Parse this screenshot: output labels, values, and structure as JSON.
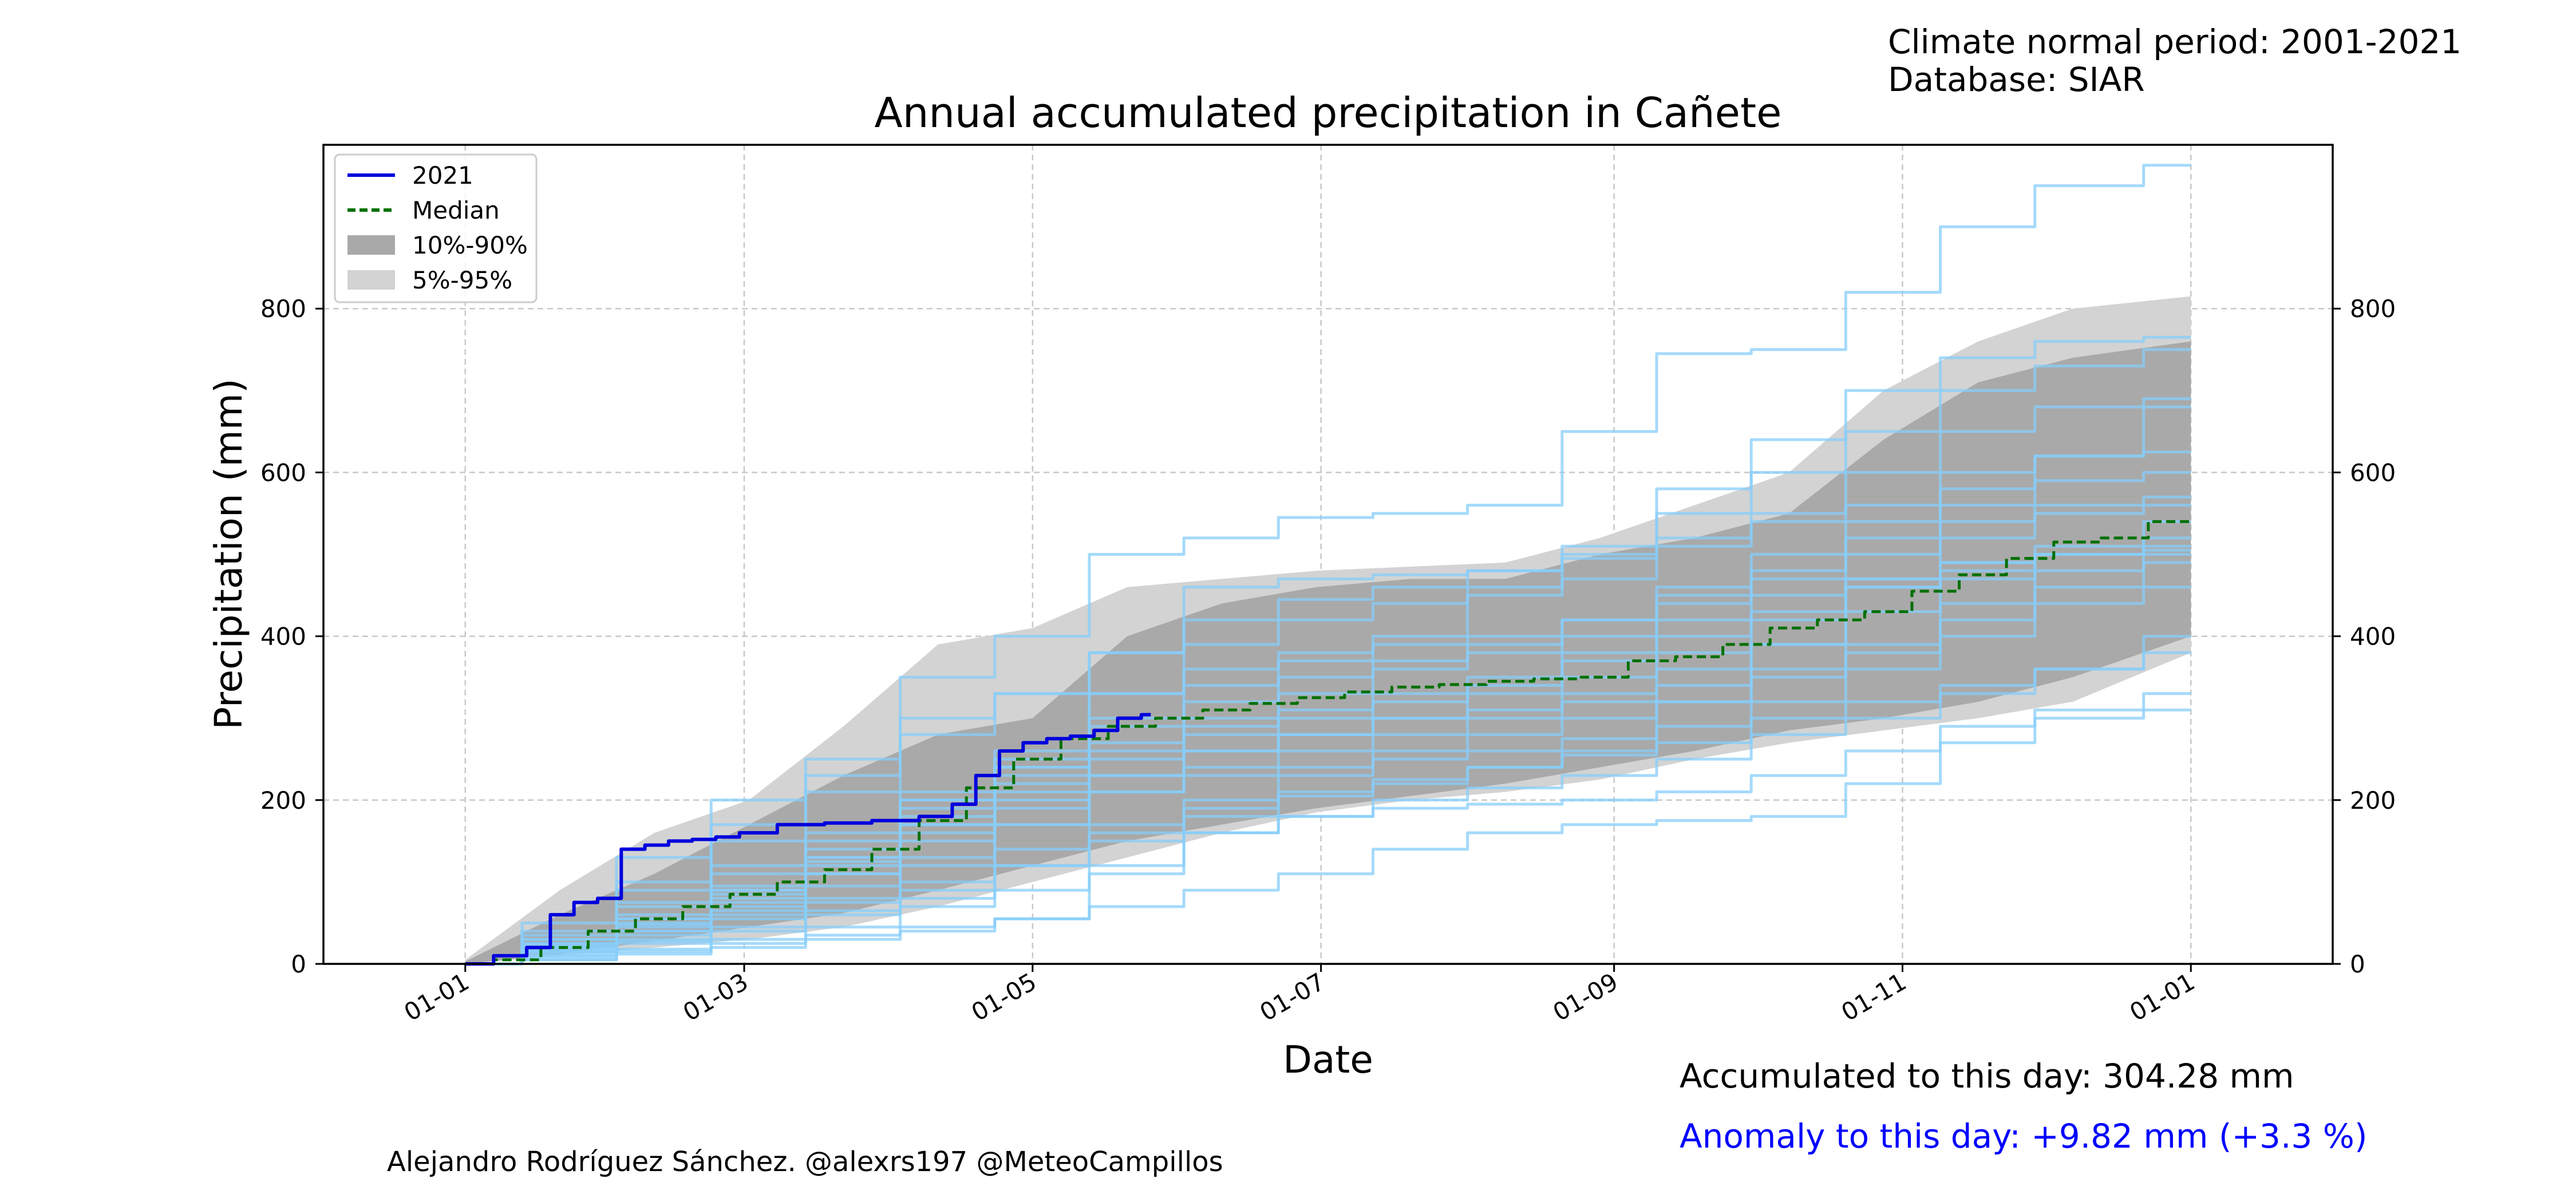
{
  "meta": {
    "period": "Climate normal period: 2001-2021",
    "database": "Database: SIAR"
  },
  "stats": {
    "accumulated": "Accumulated to this day: 304.28 mm",
    "anomaly": "Anomaly to this day: +9.82 mm (+3.3 %)",
    "anomaly_color": "#0000ff"
  },
  "credit": "Alejandro Rodríguez Sánchez. @alexrs197 @MeteoCampillos",
  "colors": {
    "current_year": "#0000dd",
    "median": "#007000",
    "band_10_90": "#a9a9a9",
    "band_5_95": "#d3d3d3",
    "past_years": "#87cefa",
    "grid": "#c8c8c8"
  },
  "chart_data": {
    "type": "line",
    "title": "Annual accumulated precipitation in Cañete",
    "xlabel": "Date",
    "ylabel": "Precipitation (mm)",
    "x_unit": "day of year",
    "xlim": [
      -30,
      395
    ],
    "ylim": [
      0,
      1000
    ],
    "grid": true,
    "legend_position": "top-left",
    "x_ticks": [
      {
        "x": 0,
        "label": "01-01"
      },
      {
        "x": 59,
        "label": "01-03"
      },
      {
        "x": 120,
        "label": "01-05"
      },
      {
        "x": 181,
        "label": "01-07"
      },
      {
        "x": 243,
        "label": "01-09"
      },
      {
        "x": 304,
        "label": "01-11"
      },
      {
        "x": 365,
        "label": "01-01"
      }
    ],
    "y_ticks": [
      0,
      200,
      400,
      600,
      800
    ],
    "legend": [
      "2021",
      "Median",
      "10%-90%",
      "5%-95%"
    ],
    "band_5_95": {
      "x": [
        0,
        20,
        40,
        60,
        80,
        100,
        120,
        140,
        160,
        180,
        200,
        220,
        240,
        260,
        280,
        300,
        320,
        340,
        365
      ],
      "low": [
        0,
        10,
        20,
        30,
        45,
        70,
        100,
        130,
        160,
        185,
        200,
        210,
        225,
        250,
        270,
        285,
        300,
        320,
        380
      ],
      "high": [
        5,
        90,
        160,
        200,
        290,
        390,
        410,
        460,
        470,
        480,
        485,
        490,
        520,
        560,
        600,
        700,
        760,
        800,
        815
      ]
    },
    "band_10_90": {
      "x": [
        0,
        20,
        40,
        60,
        80,
        100,
        120,
        140,
        160,
        180,
        200,
        220,
        240,
        260,
        280,
        300,
        320,
        340,
        365
      ],
      "low": [
        0,
        12,
        28,
        45,
        62,
        90,
        120,
        150,
        170,
        190,
        205,
        220,
        240,
        260,
        285,
        300,
        320,
        350,
        400
      ],
      "high": [
        3,
        60,
        110,
        170,
        230,
        280,
        300,
        400,
        440,
        460,
        470,
        470,
        500,
        520,
        550,
        640,
        710,
        740,
        760
      ]
    },
    "series": [
      {
        "name": "Median",
        "x": [
          0,
          10,
          20,
          30,
          40,
          50,
          60,
          70,
          80,
          90,
          100,
          110,
          120,
          130,
          140,
          150,
          160,
          170,
          180,
          190,
          200,
          210,
          220,
          230,
          240,
          250,
          260,
          270,
          280,
          290,
          300,
          310,
          320,
          330,
          340,
          350,
          360,
          365
        ],
        "y": [
          0,
          5,
          20,
          40,
          55,
          70,
          85,
          100,
          115,
          140,
          175,
          215,
          250,
          275,
          290,
          300,
          310,
          318,
          325,
          332,
          338,
          341,
          345,
          348,
          350,
          370,
          375,
          390,
          410,
          420,
          430,
          455,
          475,
          495,
          515,
          520,
          540,
          540
        ]
      },
      {
        "name": "2021",
        "x": [
          0,
          10,
          15,
          20,
          25,
          30,
          35,
          40,
          45,
          50,
          55,
          60,
          70,
          80,
          90,
          100,
          105,
          110,
          115,
          120,
          125,
          130,
          135,
          140,
          145
        ],
        "y": [
          0,
          10,
          20,
          60,
          75,
          80,
          140,
          145,
          150,
          152,
          155,
          160,
          170,
          172,
          175,
          180,
          195,
          230,
          260,
          270,
          275,
          278,
          285,
          300,
          304.28
        ]
      }
    ],
    "past_years": [
      {
        "name": "year-01",
        "x": [
          0,
          20,
          40,
          60,
          80,
          100,
          120,
          140,
          160,
          180,
          200,
          220,
          240,
          260,
          280,
          300,
          320,
          340,
          365
        ],
        "y": [
          0,
          20,
          55,
          75,
          120,
          210,
          240,
          330,
          360,
          380,
          400,
          460,
          500,
          580,
          640,
          700,
          740,
          760,
          765
        ]
      },
      {
        "name": "year-02",
        "x": [
          0,
          20,
          40,
          60,
          80,
          100,
          120,
          140,
          160,
          180,
          200,
          220,
          240,
          260,
          280,
          300,
          320,
          340,
          365
        ],
        "y": [
          0,
          15,
          35,
          60,
          80,
          120,
          170,
          210,
          230,
          240,
          250,
          260,
          275,
          320,
          390,
          460,
          490,
          510,
          520
        ]
      },
      {
        "name": "year-03",
        "x": [
          0,
          20,
          40,
          60,
          80,
          100,
          120,
          140,
          160,
          180,
          200,
          220,
          240,
          260,
          280,
          300,
          320,
          340,
          365
        ],
        "y": [
          0,
          30,
          100,
          170,
          230,
          300,
          330,
          380,
          460,
          470,
          475,
          480,
          495,
          520,
          540,
          560,
          600,
          620,
          625
        ]
      },
      {
        "name": "year-04",
        "x": [
          0,
          20,
          40,
          60,
          80,
          100,
          120,
          140,
          160,
          180,
          200,
          220,
          240,
          260,
          280,
          300,
          320,
          340,
          365
        ],
        "y": [
          0,
          10,
          25,
          40,
          60,
          80,
          120,
          150,
          180,
          205,
          220,
          240,
          255,
          270,
          300,
          320,
          340,
          360,
          380
        ]
      },
      {
        "name": "year-05",
        "x": [
          0,
          20,
          40,
          60,
          80,
          100,
          120,
          140,
          160,
          180,
          200,
          220,
          240,
          260,
          280,
          300,
          320,
          340,
          365
        ],
        "y": [
          0,
          20,
          45,
          80,
          110,
          170,
          230,
          270,
          300,
          330,
          360,
          380,
          400,
          440,
          470,
          500,
          540,
          560,
          570
        ]
      },
      {
        "name": "year-06",
        "x": [
          0,
          20,
          40,
          60,
          80,
          100,
          120,
          140,
          160,
          180,
          200,
          220,
          240,
          260,
          280,
          300,
          320,
          340,
          365
        ],
        "y": [
          0,
          40,
          90,
          150,
          210,
          280,
          330,
          380,
          420,
          445,
          460,
          480,
          510,
          550,
          600,
          650,
          700,
          730,
          750
        ]
      },
      {
        "name": "year-07",
        "x": [
          0,
          20,
          40,
          60,
          80,
          100,
          120,
          140,
          160,
          180,
          200,
          220,
          240,
          260,
          280,
          300,
          320,
          340,
          365
        ],
        "y": [
          0,
          15,
          30,
          55,
          75,
          100,
          140,
          170,
          200,
          230,
          260,
          280,
          300,
          320,
          350,
          380,
          420,
          460,
          490
        ]
      },
      {
        "name": "year-08",
        "x": [
          0,
          20,
          40,
          60,
          80,
          100,
          120,
          140,
          160,
          180,
          200,
          220,
          240,
          260,
          280,
          300,
          320,
          340,
          365
        ],
        "y": [
          0,
          25,
          60,
          95,
          140,
          190,
          240,
          300,
          340,
          370,
          390,
          400,
          420,
          450,
          480,
          520,
          560,
          590,
          600
        ]
      },
      {
        "name": "year-09",
        "x": [
          0,
          20,
          40,
          60,
          80,
          100,
          120,
          140,
          160,
          180,
          200,
          220,
          240,
          260,
          280,
          300,
          320,
          340,
          365
        ],
        "y": [
          0,
          8,
          18,
          30,
          45,
          70,
          90,
          120,
          160,
          180,
          200,
          215,
          230,
          250,
          280,
          300,
          330,
          360,
          400
        ]
      },
      {
        "name": "year-10",
        "x": [
          0,
          20,
          40,
          60,
          80,
          100,
          120,
          140,
          160,
          180,
          200,
          220,
          240,
          260,
          280,
          300,
          320,
          340,
          365
        ],
        "y": [
          0,
          30,
          70,
          120,
          160,
          200,
          250,
          290,
          320,
          350,
          370,
          390,
          420,
          460,
          500,
          540,
          580,
          620,
          680
        ]
      },
      {
        "name": "year-11",
        "x": [
          0,
          20,
          40,
          60,
          80,
          100,
          120,
          140,
          160,
          180,
          200,
          220,
          240,
          260,
          280,
          300,
          320,
          340,
          365
        ],
        "y": [
          0,
          12,
          28,
          45,
          65,
          90,
          120,
          160,
          190,
          210,
          225,
          240,
          260,
          290,
          320,
          360,
          400,
          440,
          460
        ]
      },
      {
        "name": "year-12",
        "x": [
          0,
          20,
          40,
          60,
          80,
          100,
          120,
          140,
          160,
          180,
          200,
          220,
          240,
          260,
          280,
          300,
          320,
          340,
          365
        ],
        "y": [
          0,
          20,
          50,
          90,
          130,
          170,
          210,
          250,
          280,
          300,
          320,
          340,
          370,
          400,
          430,
          460,
          480,
          500,
          510
        ]
      },
      {
        "name": "year-13",
        "x": [
          0,
          20,
          40,
          60,
          80,
          100,
          120,
          140,
          160,
          180,
          200,
          220,
          240,
          260,
          280,
          300,
          320,
          340,
          365
        ],
        "y": [
          0,
          22,
          48,
          85,
          125,
          160,
          200,
          230,
          260,
          280,
          300,
          330,
          350,
          380,
          420,
          470,
          520,
          550,
          560
        ]
      },
      {
        "name": "year-14",
        "x": [
          0,
          20,
          40,
          60,
          80,
          100,
          120,
          140,
          160,
          180,
          200,
          220,
          240,
          260,
          280,
          300,
          320,
          340,
          365
        ],
        "y": [
          0,
          5,
          12,
          20,
          30,
          40,
          55,
          70,
          90,
          110,
          140,
          160,
          170,
          175,
          180,
          220,
          270,
          300,
          310
        ]
      },
      {
        "name": "year-15",
        "x": [
          0,
          20,
          40,
          60,
          80,
          100,
          120,
          140,
          160,
          180,
          200,
          220,
          240,
          260,
          280,
          300,
          320,
          340,
          365
        ],
        "y": [
          0,
          5,
          15,
          25,
          35,
          45,
          55,
          110,
          160,
          180,
          190,
          195,
          200,
          210,
          230,
          260,
          290,
          310,
          330
        ]
      },
      {
        "name": "year-16",
        "x": [
          0,
          20,
          40,
          60,
          80,
          100,
          120,
          140,
          160,
          180,
          200,
          220,
          240,
          260,
          280,
          300,
          320,
          340,
          365
        ],
        "y": [
          0,
          50,
          130,
          200,
          250,
          350,
          400,
          500,
          520,
          545,
          550,
          560,
          650,
          745,
          750,
          820,
          900,
          950,
          975
        ]
      },
      {
        "name": "year-17",
        "x": [
          0,
          20,
          40,
          60,
          80,
          100,
          120,
          140,
          160,
          180,
          200,
          220,
          240,
          260,
          280,
          300,
          320,
          340,
          365
        ],
        "y": [
          0,
          15,
          40,
          70,
          110,
          150,
          190,
          230,
          260,
          280,
          300,
          310,
          320,
          340,
          360,
          390,
          440,
          480,
          500
        ]
      },
      {
        "name": "year-18",
        "x": [
          0,
          20,
          40,
          60,
          80,
          100,
          120,
          140,
          160,
          180,
          200,
          220,
          240,
          260,
          280,
          300,
          320,
          340,
          365
        ],
        "y": [
          0,
          25,
          55,
          90,
          130,
          180,
          220,
          260,
          290,
          310,
          330,
          350,
          380,
          420,
          450,
          470,
          490,
          500,
          505
        ]
      },
      {
        "name": "year-19",
        "x": [
          0,
          20,
          40,
          60,
          80,
          100,
          120,
          140,
          160,
          180,
          200,
          220,
          240,
          260,
          280,
          300,
          320,
          340,
          365
        ],
        "y": [
          0,
          35,
          75,
          110,
          150,
          200,
          260,
          330,
          390,
          420,
          440,
          450,
          470,
          510,
          550,
          600,
          650,
          680,
          690
        ]
      },
      {
        "name": "year-20",
        "x": [
          0,
          20,
          40,
          60,
          80,
          100,
          120,
          140,
          160,
          180,
          200,
          220,
          240,
          260,
          280,
          300,
          320,
          340,
          365
        ],
        "y": [
          0,
          18,
          40,
          65,
          95,
          130,
          170,
          210,
          240,
          260,
          280,
          300,
          330,
          360,
          390,
          430,
          470,
          500,
          540
        ]
      }
    ]
  }
}
